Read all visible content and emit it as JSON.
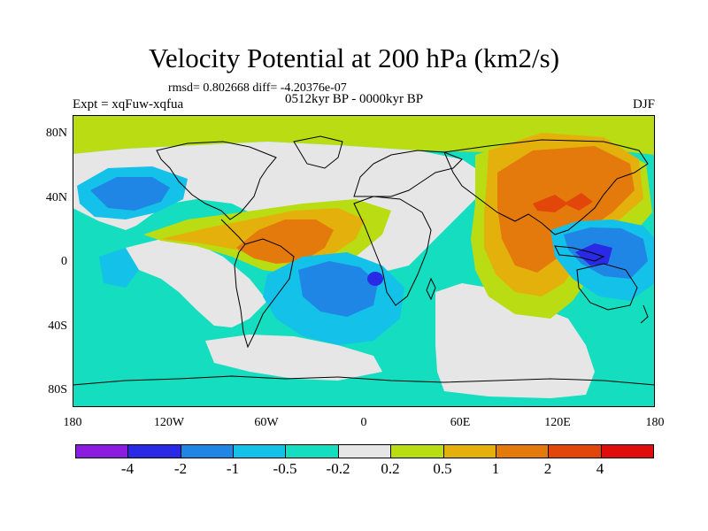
{
  "title": "Velocity Potential at 200 hPa (km2/s)",
  "stats": "rmsd= 0.802668 diff= -4.20376e-07",
  "experiment": "Expt = xqFuw-xqfua",
  "period": "0512kyr BP - 0000kyr BP",
  "season": "DJF",
  "x_axis": {
    "tick_labels": [
      "180",
      "120W",
      "60W",
      "0",
      "60E",
      "120E",
      "180"
    ]
  },
  "y_axis": {
    "tick_labels": [
      "80N",
      "40N",
      "0",
      "40S",
      "80S"
    ]
  },
  "colorbar": {
    "colors": [
      "#8a1de0",
      "#2a2ae6",
      "#1f86e6",
      "#14c1e8",
      "#15ddc0",
      "#e6e6e6",
      "#b9dd12",
      "#e4b10c",
      "#e47a0b",
      "#e2460b",
      "#e00d0d"
    ],
    "labels": [
      "-4",
      "-2",
      "-1",
      "-0.5",
      "-0.2",
      "0.2",
      "0.5",
      "1",
      "2",
      "4"
    ]
  },
  "map_colors": {
    "background": "#15ddc0",
    "neutral": "#e6e6e6",
    "pos_05": "#b9dd12",
    "pos_1": "#e4b10c",
    "pos_2": "#e47a0b",
    "pos_4": "#e2460b",
    "neg_05": "#14c1e8",
    "neg_1": "#1f86e6",
    "neg_2": "#2a2ae6"
  }
}
